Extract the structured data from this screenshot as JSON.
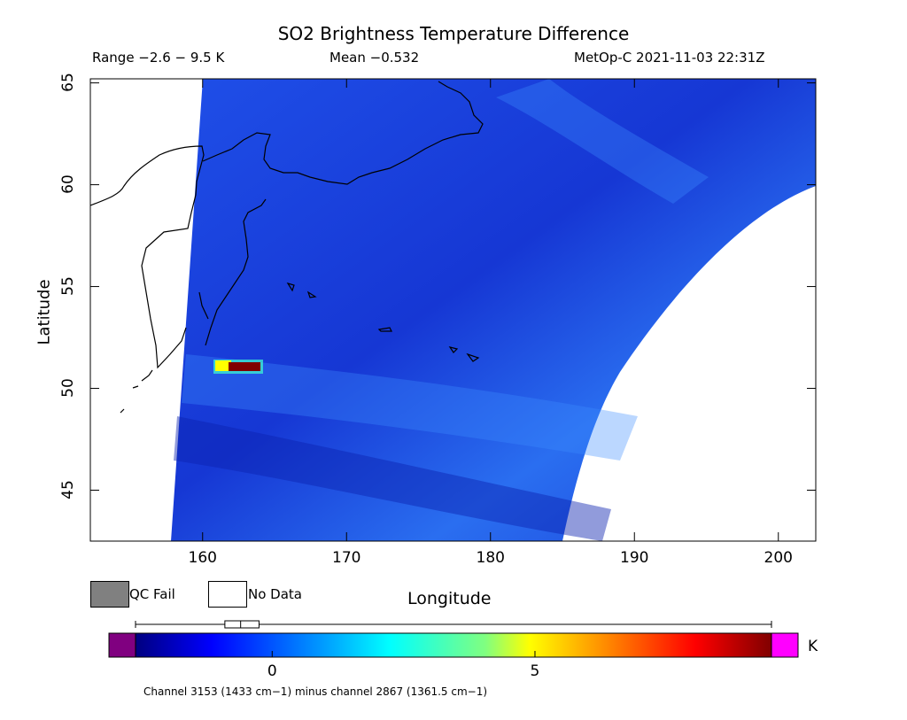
{
  "header": {
    "title": "SO2 Brightness Temperature Difference",
    "range": "Range −2.6 − 9.5 K",
    "mean": "Mean −0.532",
    "satellite_time": "MetOp-C 2021-11-03 22:31Z"
  },
  "axes": {
    "xlabel": "Longitude",
    "ylabel": "Latitude",
    "x_ticks": [
      "160",
      "170",
      "180",
      "190",
      "200"
    ],
    "y_ticks": [
      "45",
      "50",
      "55",
      "60",
      "65"
    ],
    "x_range": [
      152.2,
      202.6
    ],
    "y_range": [
      42.5,
      65.2
    ]
  },
  "legend": {
    "qc_fail": "QC Fail",
    "no_data": "No Data",
    "qc_fail_color": "#808080",
    "no_data_color": "#ffffff"
  },
  "colorbar": {
    "unit": "K",
    "ticks": [
      "0",
      "5"
    ],
    "tick_values": [
      0,
      5
    ],
    "value_range": [
      -2.6,
      9.5
    ],
    "under_color": "#800080",
    "over_color": "#ff00ff",
    "box_whisker": {
      "min": -2.6,
      "q1": -0.9,
      "median": -0.6,
      "q3": -0.25,
      "max": 9.5
    }
  },
  "footnote": "Channel 3153 (1433 cm−1) minus channel 2867 (1361.5 cm−1)",
  "map_data": {
    "background_value": -0.8,
    "anomaly": {
      "lon": 162.5,
      "lat": 51.0,
      "peak_value": 9.5
    }
  }
}
